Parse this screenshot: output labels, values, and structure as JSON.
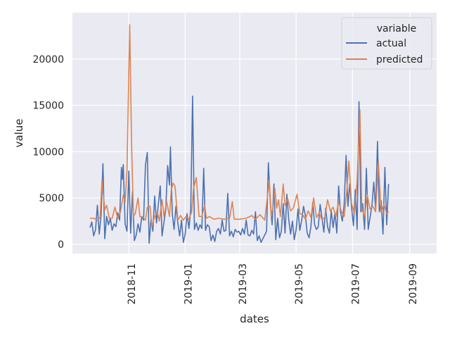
{
  "chart_data": {
    "type": "line",
    "xlabel": "dates",
    "ylabel": "value",
    "xlim": [
      "2018-09-01",
      "2019-09-30"
    ],
    "ylim": [
      -1000,
      25000
    ],
    "x_ticks": [
      {
        "date": "2018-11-01",
        "label": "2018-11"
      },
      {
        "date": "2019-01-01",
        "label": "2019-01"
      },
      {
        "date": "2019-03-01",
        "label": "2019-03"
      },
      {
        "date": "2019-05-01",
        "label": "2019-05"
      },
      {
        "date": "2019-07-01",
        "label": "2019-07"
      },
      {
        "date": "2019-09-01",
        "label": "2019-09"
      }
    ],
    "y_ticks": [
      0,
      5000,
      10000,
      15000,
      20000
    ],
    "grid": true,
    "legend": {
      "title": "variable",
      "position": "top-right"
    },
    "colors": {
      "actual": "#4c72b0",
      "predicted": "#dd8452",
      "background": "#eaeaf2",
      "grid": "#ffffff"
    },
    "series": [
      {
        "name": "actual",
        "color": "#4c72b0",
        "points": [
          [
            "2018-09-20",
            1800
          ],
          [
            "2018-09-22",
            2400
          ],
          [
            "2018-09-24",
            900
          ],
          [
            "2018-09-26",
            1600
          ],
          [
            "2018-09-28",
            4200
          ],
          [
            "2018-09-30",
            1100
          ],
          [
            "2018-10-02",
            3200
          ],
          [
            "2018-10-04",
            8700
          ],
          [
            "2018-10-06",
            600
          ],
          [
            "2018-10-08",
            3000
          ],
          [
            "2018-10-10",
            2100
          ],
          [
            "2018-10-12",
            2800
          ],
          [
            "2018-10-14",
            1500
          ],
          [
            "2018-10-16",
            2200
          ],
          [
            "2018-10-18",
            1900
          ],
          [
            "2018-10-20",
            3400
          ],
          [
            "2018-10-22",
            2600
          ],
          [
            "2018-10-24",
            8300
          ],
          [
            "2018-10-25",
            7000
          ],
          [
            "2018-10-26",
            8600
          ],
          [
            "2018-10-28",
            2200
          ],
          [
            "2018-10-30",
            1400
          ],
          [
            "2018-11-01",
            7900
          ],
          [
            "2018-11-03",
            1200
          ],
          [
            "2018-11-05",
            5700
          ],
          [
            "2018-11-07",
            400
          ],
          [
            "2018-11-09",
            1000
          ],
          [
            "2018-11-11",
            2200
          ],
          [
            "2018-11-13",
            1300
          ],
          [
            "2018-11-15",
            3000
          ],
          [
            "2018-11-17",
            2600
          ],
          [
            "2018-11-19",
            8600
          ],
          [
            "2018-11-21",
            9900
          ],
          [
            "2018-11-23",
            100
          ],
          [
            "2018-11-25",
            2700
          ],
          [
            "2018-11-27",
            1400
          ],
          [
            "2018-11-29",
            5200
          ],
          [
            "2018-12-01",
            2300
          ],
          [
            "2018-12-03",
            4400
          ],
          [
            "2018-12-05",
            6300
          ],
          [
            "2018-12-07",
            900
          ],
          [
            "2018-12-09",
            2400
          ],
          [
            "2018-12-11",
            3800
          ],
          [
            "2018-12-13",
            8500
          ],
          [
            "2018-12-15",
            6400
          ],
          [
            "2018-12-16",
            10500
          ],
          [
            "2018-12-18",
            3300
          ],
          [
            "2018-12-20",
            1600
          ],
          [
            "2018-12-22",
            4100
          ],
          [
            "2018-12-24",
            2300
          ],
          [
            "2018-12-26",
            900
          ],
          [
            "2018-12-28",
            2600
          ],
          [
            "2018-12-30",
            200
          ],
          [
            "2019-01-01",
            1100
          ],
          [
            "2019-01-03",
            3300
          ],
          [
            "2019-01-05",
            1700
          ],
          [
            "2019-01-07",
            3800
          ],
          [
            "2019-01-09",
            16000
          ],
          [
            "2019-01-11",
            1600
          ],
          [
            "2019-01-13",
            2300
          ],
          [
            "2019-01-15",
            1500
          ],
          [
            "2019-01-17",
            2100
          ],
          [
            "2019-01-19",
            1700
          ],
          [
            "2019-01-21",
            8200
          ],
          [
            "2019-01-23",
            1500
          ],
          [
            "2019-01-25",
            2100
          ],
          [
            "2019-01-27",
            1900
          ],
          [
            "2019-01-29",
            400
          ],
          [
            "2019-01-31",
            1000
          ],
          [
            "2019-02-02",
            300
          ],
          [
            "2019-02-04",
            1400
          ],
          [
            "2019-02-06",
            1700
          ],
          [
            "2019-02-08",
            1100
          ],
          [
            "2019-02-10",
            2600
          ],
          [
            "2019-02-12",
            1400
          ],
          [
            "2019-02-14",
            1500
          ],
          [
            "2019-02-16",
            5500
          ],
          [
            "2019-02-18",
            900
          ],
          [
            "2019-02-20",
            1400
          ],
          [
            "2019-02-22",
            800
          ],
          [
            "2019-02-24",
            1600
          ],
          [
            "2019-02-26",
            1300
          ],
          [
            "2019-02-28",
            1400
          ],
          [
            "2019-03-02",
            1000
          ],
          [
            "2019-03-04",
            1700
          ],
          [
            "2019-03-06",
            1100
          ],
          [
            "2019-03-08",
            2600
          ],
          [
            "2019-03-10",
            1000
          ],
          [
            "2019-03-12",
            900
          ],
          [
            "2019-03-14",
            1500
          ],
          [
            "2019-03-16",
            1100
          ],
          [
            "2019-03-18",
            3500
          ],
          [
            "2019-03-20",
            400
          ],
          [
            "2019-03-22",
            900
          ],
          [
            "2019-03-24",
            200
          ],
          [
            "2019-03-26",
            600
          ],
          [
            "2019-03-28",
            1000
          ],
          [
            "2019-03-30",
            1400
          ],
          [
            "2019-04-01",
            8800
          ],
          [
            "2019-04-03",
            4500
          ],
          [
            "2019-04-05",
            2100
          ],
          [
            "2019-04-07",
            6500
          ],
          [
            "2019-04-09",
            500
          ],
          [
            "2019-04-11",
            2800
          ],
          [
            "2019-04-13",
            700
          ],
          [
            "2019-04-15",
            1400
          ],
          [
            "2019-04-17",
            4400
          ],
          [
            "2019-04-19",
            1200
          ],
          [
            "2019-04-21",
            5400
          ],
          [
            "2019-04-23",
            2700
          ],
          [
            "2019-04-25",
            1100
          ],
          [
            "2019-04-27",
            2500
          ],
          [
            "2019-04-29",
            500
          ],
          [
            "2019-05-01",
            1600
          ],
          [
            "2019-05-03",
            3800
          ],
          [
            "2019-05-05",
            1500
          ],
          [
            "2019-05-07",
            2600
          ],
          [
            "2019-05-09",
            4100
          ],
          [
            "2019-05-11",
            3100
          ],
          [
            "2019-05-13",
            1200
          ],
          [
            "2019-05-15",
            700
          ],
          [
            "2019-05-17",
            1900
          ],
          [
            "2019-05-19",
            4500
          ],
          [
            "2019-05-21",
            2100
          ],
          [
            "2019-05-23",
            1600
          ],
          [
            "2019-05-25",
            1900
          ],
          [
            "2019-05-27",
            4300
          ],
          [
            "2019-05-29",
            2800
          ],
          [
            "2019-05-31",
            1300
          ],
          [
            "2019-06-02",
            3900
          ],
          [
            "2019-06-04",
            1900
          ],
          [
            "2019-06-06",
            1200
          ],
          [
            "2019-06-08",
            3600
          ],
          [
            "2019-06-10",
            1800
          ],
          [
            "2019-06-12",
            3400
          ],
          [
            "2019-06-14",
            1200
          ],
          [
            "2019-06-16",
            6300
          ],
          [
            "2019-06-18",
            3500
          ],
          [
            "2019-06-20",
            2500
          ],
          [
            "2019-06-22",
            4300
          ],
          [
            "2019-06-24",
            9600
          ],
          [
            "2019-06-26",
            4100
          ],
          [
            "2019-06-28",
            6500
          ],
          [
            "2019-06-30",
            4000
          ],
          [
            "2019-07-02",
            2000
          ],
          [
            "2019-07-04",
            5900
          ],
          [
            "2019-07-06",
            1600
          ],
          [
            "2019-07-08",
            15400
          ],
          [
            "2019-07-10",
            3500
          ],
          [
            "2019-07-12",
            4400
          ],
          [
            "2019-07-14",
            1600
          ],
          [
            "2019-07-16",
            8200
          ],
          [
            "2019-07-18",
            1600
          ],
          [
            "2019-07-20",
            2900
          ],
          [
            "2019-07-22",
            4200
          ],
          [
            "2019-07-24",
            6700
          ],
          [
            "2019-07-26",
            3800
          ],
          [
            "2019-07-28",
            11100
          ],
          [
            "2019-07-30",
            3500
          ],
          [
            "2019-08-01",
            4700
          ],
          [
            "2019-08-03",
            1100
          ],
          [
            "2019-08-05",
            8300
          ],
          [
            "2019-08-07",
            2100
          ],
          [
            "2019-08-09",
            6500
          ]
        ]
      },
      {
        "name": "predicted",
        "color": "#dd8452",
        "points": [
          [
            "2018-09-20",
            2800
          ],
          [
            "2018-09-24",
            2800
          ],
          [
            "2018-09-28",
            2600
          ],
          [
            "2018-10-01",
            2900
          ],
          [
            "2018-10-03",
            7000
          ],
          [
            "2018-10-06",
            3700
          ],
          [
            "2018-10-08",
            4200
          ],
          [
            "2018-10-11",
            2800
          ],
          [
            "2018-10-14",
            2800
          ],
          [
            "2018-10-17",
            4000
          ],
          [
            "2018-10-20",
            2800
          ],
          [
            "2018-10-23",
            3500
          ],
          [
            "2018-10-26",
            5300
          ],
          [
            "2018-10-28",
            4600
          ],
          [
            "2018-10-30",
            8000
          ],
          [
            "2018-11-02",
            23700
          ],
          [
            "2018-11-04",
            11000
          ],
          [
            "2018-11-06",
            3000
          ],
          [
            "2018-11-08",
            3300
          ],
          [
            "2018-11-11",
            5000
          ],
          [
            "2018-11-13",
            3000
          ],
          [
            "2018-11-16",
            2900
          ],
          [
            "2018-11-19",
            2600
          ],
          [
            "2018-11-21",
            4000
          ],
          [
            "2018-11-24",
            4100
          ],
          [
            "2018-11-26",
            1900
          ],
          [
            "2018-11-29",
            3000
          ],
          [
            "2018-12-02",
            3400
          ],
          [
            "2018-12-04",
            2500
          ],
          [
            "2018-12-07",
            4800
          ],
          [
            "2018-12-09",
            3000
          ],
          [
            "2018-12-12",
            4600
          ],
          [
            "2018-12-15",
            3000
          ],
          [
            "2018-12-17",
            5900
          ],
          [
            "2018-12-19",
            6600
          ],
          [
            "2018-12-21",
            6300
          ],
          [
            "2018-12-24",
            2600
          ],
          [
            "2018-12-27",
            3100
          ],
          [
            "2018-12-30",
            2600
          ],
          [
            "2019-01-02",
            3000
          ],
          [
            "2019-01-05",
            2700
          ],
          [
            "2019-01-08",
            3500
          ],
          [
            "2019-01-10",
            6000
          ],
          [
            "2019-01-13",
            7200
          ],
          [
            "2019-01-16",
            3000
          ],
          [
            "2019-01-19",
            3000
          ],
          [
            "2019-01-22",
            4200
          ],
          [
            "2019-01-24",
            2800
          ],
          [
            "2019-01-27",
            3000
          ],
          [
            "2019-02-01",
            2700
          ],
          [
            "2019-02-06",
            2800
          ],
          [
            "2019-02-12",
            2700
          ],
          [
            "2019-02-18",
            2800
          ],
          [
            "2019-02-21",
            4600
          ],
          [
            "2019-02-23",
            2700
          ],
          [
            "2019-03-01",
            2700
          ],
          [
            "2019-03-08",
            2800
          ],
          [
            "2019-03-14",
            3100
          ],
          [
            "2019-03-18",
            2700
          ],
          [
            "2019-03-23",
            3200
          ],
          [
            "2019-03-28",
            2600
          ],
          [
            "2019-04-02",
            6900
          ],
          [
            "2019-04-04",
            3000
          ],
          [
            "2019-04-06",
            4000
          ],
          [
            "2019-04-08",
            6000
          ],
          [
            "2019-04-10",
            3900
          ],
          [
            "2019-04-12",
            4800
          ],
          [
            "2019-04-14",
            3000
          ],
          [
            "2019-04-17",
            6500
          ],
          [
            "2019-04-19",
            4200
          ],
          [
            "2019-04-22",
            4900
          ],
          [
            "2019-04-25",
            3600
          ],
          [
            "2019-04-28",
            3900
          ],
          [
            "2019-05-02",
            5400
          ],
          [
            "2019-05-05",
            3300
          ],
          [
            "2019-05-08",
            3200
          ],
          [
            "2019-05-11",
            2700
          ],
          [
            "2019-05-14",
            3600
          ],
          [
            "2019-05-17",
            2900
          ],
          [
            "2019-05-20",
            5000
          ],
          [
            "2019-05-23",
            2900
          ],
          [
            "2019-05-26",
            3400
          ],
          [
            "2019-05-29",
            2600
          ],
          [
            "2019-06-01",
            2900
          ],
          [
            "2019-06-04",
            4800
          ],
          [
            "2019-06-07",
            3600
          ],
          [
            "2019-06-10",
            4000
          ],
          [
            "2019-06-13",
            3000
          ],
          [
            "2019-06-16",
            4600
          ],
          [
            "2019-06-19",
            3500
          ],
          [
            "2019-06-22",
            3000
          ],
          [
            "2019-06-25",
            6000
          ],
          [
            "2019-06-27",
            9000
          ],
          [
            "2019-06-30",
            4400
          ],
          [
            "2019-07-03",
            3300
          ],
          [
            "2019-07-06",
            6800
          ],
          [
            "2019-07-09",
            14500
          ],
          [
            "2019-07-11",
            3800
          ],
          [
            "2019-07-14",
            3000
          ],
          [
            "2019-07-17",
            5300
          ],
          [
            "2019-07-20",
            3800
          ],
          [
            "2019-07-23",
            4100
          ],
          [
            "2019-07-26",
            3500
          ],
          [
            "2019-07-29",
            8800
          ],
          [
            "2019-08-01",
            3400
          ],
          [
            "2019-08-04",
            4300
          ],
          [
            "2019-08-07",
            3300
          ],
          [
            "2019-08-09",
            3500
          ]
        ]
      }
    ]
  }
}
